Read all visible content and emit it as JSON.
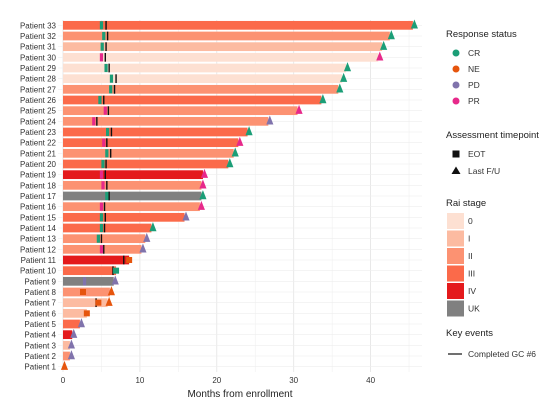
{
  "chart_data": {
    "type": "bar",
    "orientation": "horizontal",
    "xlabel": "Months from enrollment",
    "ylabel": "",
    "xlim": [
      -1,
      47
    ],
    "x_ticks": [
      0,
      10,
      20,
      30,
      40
    ],
    "grid": true,
    "legend_position": "right",
    "colors": {
      "rai": {
        "0": "#fde0d2",
        "I": "#fcbba1",
        "II": "#fc9272",
        "III": "#fb6a4a",
        "IV": "#e41a1c",
        "UK": "#808080"
      },
      "response": {
        "CR": "#1b9e77",
        "NE": "#e6550d",
        "PD": "#8073ac",
        "PR": "#e7298a"
      },
      "event_line": "#111111"
    },
    "patients": [
      {
        "label": "Patient 33",
        "months": 45.5,
        "rai": "III",
        "end_marker": "triangle",
        "status": "CR",
        "events": [
          {
            "t": 5.0,
            "status": "CR"
          }
        ],
        "gc6": 5.6
      },
      {
        "label": "Patient 32",
        "months": 42.5,
        "rai": "II",
        "end_marker": "triangle",
        "status": "CR",
        "events": [
          {
            "t": 5.3,
            "status": "CR"
          }
        ],
        "gc6": 5.8
      },
      {
        "label": "Patient 31",
        "months": 41.5,
        "rai": "I",
        "end_marker": "triangle",
        "status": "CR",
        "events": [
          {
            "t": 5.1,
            "status": "CR"
          }
        ],
        "gc6": 5.6
      },
      {
        "label": "Patient 30",
        "months": 41.0,
        "rai": "0",
        "end_marker": "triangle",
        "status": "PR",
        "events": [
          {
            "t": 5.0,
            "status": "PR"
          }
        ],
        "gc6": 5.5
      },
      {
        "label": "Patient 29",
        "months": 36.8,
        "rai": "0",
        "end_marker": "triangle",
        "status": "CR",
        "events": [
          {
            "t": 5.6,
            "status": "CR"
          }
        ],
        "gc6": 6.0
      },
      {
        "label": "Patient 28",
        "months": 36.3,
        "rai": "0",
        "end_marker": "triangle",
        "status": "CR",
        "events": [
          {
            "t": 6.3,
            "status": "CR"
          }
        ],
        "gc6": 6.9
      },
      {
        "label": "Patient 27",
        "months": 35.8,
        "rai": "II",
        "end_marker": "triangle",
        "status": "CR",
        "events": [
          {
            "t": 6.2,
            "status": "CR"
          }
        ],
        "gc6": 6.7
      },
      {
        "label": "Patient 26",
        "months": 33.6,
        "rai": "III",
        "end_marker": "triangle",
        "status": "CR",
        "events": [
          {
            "t": 4.8,
            "status": "CR"
          }
        ],
        "gc6": 5.3
      },
      {
        "label": "Patient 25",
        "months": 30.5,
        "rai": "II",
        "end_marker": "triangle",
        "status": "PR",
        "events": [
          {
            "t": 5.5,
            "status": "PR"
          }
        ],
        "gc6": 5.9
      },
      {
        "label": "Patient 24",
        "months": 26.7,
        "rai": "II",
        "end_marker": "triangle",
        "status": "PD",
        "events": [
          {
            "t": 4.0,
            "status": "PR"
          }
        ],
        "gc6": 4.4
      },
      {
        "label": "Patient 23",
        "months": 24.0,
        "rai": "III",
        "end_marker": "triangle",
        "status": "CR",
        "events": [
          {
            "t": 5.8,
            "status": "CR"
          }
        ],
        "gc6": 6.3
      },
      {
        "label": "Patient 22",
        "months": 22.8,
        "rai": "III",
        "end_marker": "triangle",
        "status": "PR",
        "events": [
          {
            "t": 5.3,
            "status": "PR"
          }
        ],
        "gc6": 5.7
      },
      {
        "label": "Patient 21",
        "months": 22.2,
        "rai": "II",
        "end_marker": "triangle",
        "status": "CR",
        "events": [
          {
            "t": 5.7,
            "status": "CR"
          }
        ],
        "gc6": 6.2
      },
      {
        "label": "Patient 20",
        "months": 21.5,
        "rai": "III",
        "end_marker": "triangle",
        "status": "CR",
        "events": [
          {
            "t": 5.2,
            "status": "CR"
          }
        ],
        "gc6": 5.6
      },
      {
        "label": "Patient 19",
        "months": 18.2,
        "rai": "IV",
        "end_marker": "triangle",
        "status": "PR",
        "events": [
          {
            "t": 5.0,
            "status": "PR"
          }
        ],
        "gc6": 5.5
      },
      {
        "label": "Patient 18",
        "months": 18.0,
        "rai": "II",
        "end_marker": "triangle",
        "status": "PR",
        "events": [
          {
            "t": 5.2,
            "status": "PR"
          }
        ],
        "gc6": 5.7
      },
      {
        "label": "Patient 17",
        "months": 18.0,
        "rai": "UK",
        "end_marker": "triangle",
        "status": "CR",
        "events": [
          {
            "t": 5.7,
            "status": "CR"
          }
        ],
        "gc6": 6.0
      },
      {
        "label": "Patient 16",
        "months": 17.8,
        "rai": "II",
        "end_marker": "triangle",
        "status": "PR",
        "events": [
          {
            "t": 5.0,
            "status": "PR"
          }
        ],
        "gc6": 5.4
      },
      {
        "label": "Patient 15",
        "months": 15.8,
        "rai": "III",
        "end_marker": "triangle",
        "status": "PD",
        "events": [
          {
            "t": 5.0,
            "status": "CR"
          }
        ],
        "gc6": 5.5
      },
      {
        "label": "Patient 14",
        "months": 11.5,
        "rai": "III",
        "end_marker": "triangle",
        "status": "CR",
        "events": [
          {
            "t": 5.0,
            "status": "CR"
          }
        ],
        "gc6": 5.4
      },
      {
        "label": "Patient 13",
        "months": 10.7,
        "rai": "II",
        "end_marker": "triangle",
        "status": "PD",
        "events": [
          {
            "t": 4.6,
            "status": "CR"
          }
        ],
        "gc6": 5.0
      },
      {
        "label": "Patient 12",
        "months": 10.2,
        "rai": "II",
        "end_marker": "triangle",
        "status": "PD",
        "events": [
          {
            "t": 5.0,
            "status": "PR"
          }
        ],
        "gc6": 5.3
      },
      {
        "label": "Patient 11",
        "months": 8.6,
        "rai": "IV",
        "end_marker": "square",
        "status": "NE",
        "events": [],
        "gc6": 7.9
      },
      {
        "label": "Patient 10",
        "months": 6.9,
        "rai": "III",
        "end_marker": "square",
        "status": "CR",
        "events": [],
        "gc6": 6.5
      },
      {
        "label": "Patient 9",
        "months": 6.6,
        "rai": "UK",
        "end_marker": "triangle",
        "status": "PD",
        "events": [
          {
            "t": 2.8,
            "status": "PD"
          }
        ],
        "gc6": null
      },
      {
        "label": "Patient 8",
        "months": 6.1,
        "rai": "II",
        "end_marker": "triangle",
        "status": "NE",
        "events": [
          {
            "t": 2.6,
            "status": "NE"
          }
        ],
        "gc6": null
      },
      {
        "label": "Patient 7",
        "months": 5.8,
        "rai": "I",
        "end_marker": "triangle",
        "status": "NE",
        "events": [
          {
            "t": 4.6,
            "status": "NE"
          }
        ],
        "gc6": 4.3
      },
      {
        "label": "Patient 6",
        "months": 3.1,
        "rai": "I",
        "end_marker": "square",
        "status": "NE",
        "events": [],
        "gc6": null
      },
      {
        "label": "Patient 5",
        "months": 2.2,
        "rai": "III",
        "end_marker": "triangle",
        "status": "PD",
        "events": [],
        "gc6": null
      },
      {
        "label": "Patient 4",
        "months": 1.2,
        "rai": "IV",
        "end_marker": "triangle",
        "status": "PD",
        "events": [],
        "gc6": null
      },
      {
        "label": "Patient 3",
        "months": 0.9,
        "rai": "I",
        "end_marker": "triangle",
        "status": "PD",
        "events": [],
        "gc6": null
      },
      {
        "label": "Patient 2",
        "months": 0.9,
        "rai": "II",
        "end_marker": "triangle",
        "status": "PD",
        "events": [],
        "gc6": null
      },
      {
        "label": "Patient 1",
        "months": 0.0,
        "rai": "II",
        "end_marker": "triangle",
        "status": "NE",
        "events": [],
        "gc6": null
      }
    ],
    "legend": {
      "response_title": "Response status",
      "response_items": [
        "CR",
        "NE",
        "PD",
        "PR"
      ],
      "timepoint_title": "Assessment timepoint",
      "timepoint_items": [
        {
          "label": "EOT",
          "shape": "square"
        },
        {
          "label": "Last F/U",
          "shape": "triangle"
        }
      ],
      "rai_title": "Rai stage",
      "rai_items": [
        "0",
        "I",
        "II",
        "III",
        "IV",
        "UK"
      ],
      "events_title": "Key events",
      "events_items": [
        "Completed GC #6"
      ]
    }
  }
}
